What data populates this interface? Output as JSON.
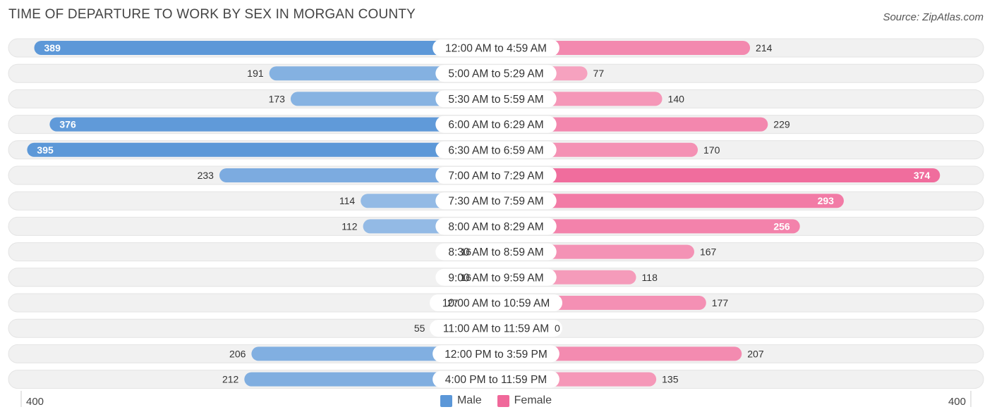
{
  "chart_data": {
    "type": "bar",
    "orientation": "horizontal-diverging",
    "title": "TIME OF DEPARTURE TO WORK BY SEX IN MORGAN COUNTY",
    "source": "Source: ZipAtlas.com",
    "categories": [
      "12:00 AM to 4:59 AM",
      "5:00 AM to 5:29 AM",
      "5:30 AM to 5:59 AM",
      "6:00 AM to 6:29 AM",
      "6:30 AM to 6:59 AM",
      "7:00 AM to 7:29 AM",
      "7:30 AM to 7:59 AM",
      "8:00 AM to 8:29 AM",
      "8:30 AM to 8:59 AM",
      "9:00 AM to 9:59 AM",
      "10:00 AM to 10:59 AM",
      "11:00 AM to 11:59 AM",
      "12:00 PM to 3:59 PM",
      "4:00 PM to 11:59 PM"
    ],
    "series": [
      {
        "name": "Male",
        "values": [
          389,
          191,
          173,
          376,
          395,
          233,
          114,
          112,
          16,
          16,
          27,
          55,
          206,
          212
        ]
      },
      {
        "name": "Female",
        "values": [
          214,
          77,
          140,
          229,
          170,
          374,
          293,
          256,
          167,
          118,
          177,
          0,
          207,
          135
        ]
      }
    ],
    "xlim": [
      0,
      400
    ],
    "axis_labels": {
      "left": "400",
      "right": "400"
    },
    "colors": {
      "male_light": "#a9c8ea",
      "male_dark": "#5b97d8",
      "female_light": "#f7b0c8",
      "female_dark": "#f0689a",
      "row_bg": "#f1f1f1",
      "label_bg": "#ffffff"
    }
  }
}
